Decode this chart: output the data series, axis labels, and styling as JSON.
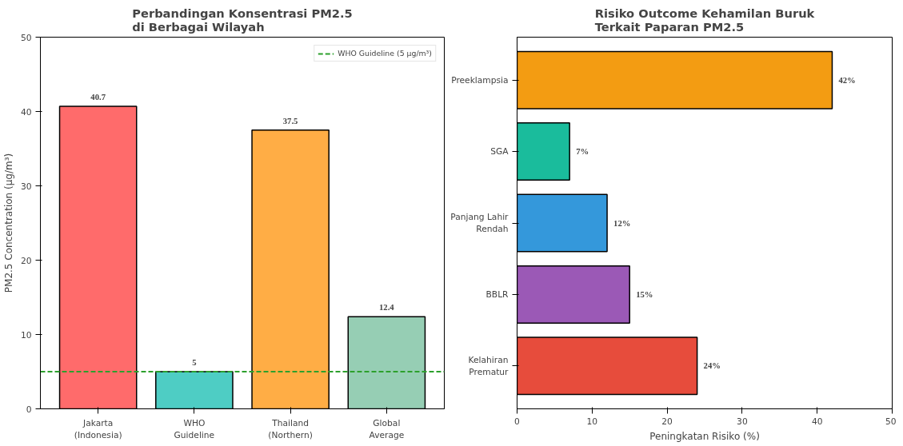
{
  "chart_data": [
    {
      "type": "bar",
      "title": "Perbandingan Konsentrasi PM2.5\ndi Berbagai Wilayah",
      "ylabel": "PM2.5 Concentration (μg/m³)",
      "categories": [
        "Jakarta\n(Indonesia)",
        "WHO\nGuideline",
        "Thailand\n(Northern)",
        "Global\nAverage"
      ],
      "values": [
        40.7,
        5,
        37.5,
        12.4
      ],
      "colors": [
        "#ff6b6b",
        "#4ecdc4",
        "#ffad45",
        "#96ceb4"
      ],
      "ylim": [
        0,
        50
      ],
      "yticks": [
        0,
        10,
        20,
        30,
        40,
        50
      ],
      "grid": false,
      "data_labels": true,
      "ref_lines": [
        {
          "axis": "y",
          "value": 5,
          "label": "WHO Guideline (5 μg/m³)",
          "color": "#2ca02c",
          "line_style": "dashed"
        }
      ],
      "legend": "top right"
    },
    {
      "type": "bar",
      "orientation": "horizontal",
      "title": "Risiko Outcome Kehamilan Buruk\nTerkait Paparan PM2.5",
      "xlabel": "Peningkatan Risiko (%)",
      "categories": [
        "Preeklampsia",
        "SGA",
        "Panjang Lahir\nRendah",
        "BBLR",
        "Kelahiran\nPrematur"
      ],
      "values": [
        42,
        7,
        12,
        15,
        24
      ],
      "colors": [
        "#f39c12",
        "#1abc9c",
        "#3498db",
        "#9b59b6",
        "#e74c3c"
      ],
      "value_labels": [
        "42%",
        "7%",
        "12%",
        "15%",
        "24%"
      ],
      "xlim": [
        0,
        50
      ],
      "xticks": [
        0,
        10,
        20,
        30,
        40,
        50
      ],
      "grid": false
    }
  ]
}
